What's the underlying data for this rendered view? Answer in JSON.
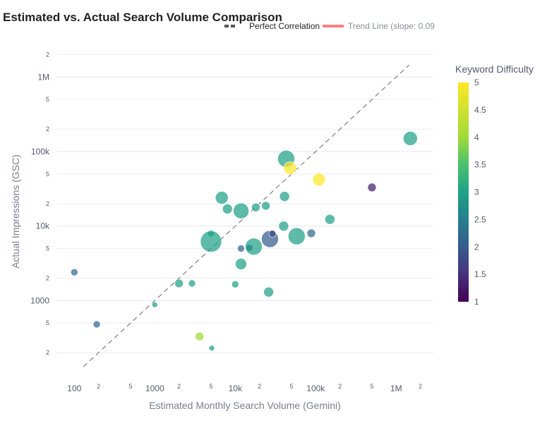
{
  "chart_data": {
    "type": "scatter",
    "title": "Estimated vs. Actual Search Volume Comparison",
    "xlabel": "Estimated Monthly Search Volume (Gemini)",
    "ylabel": "Actual Impressions (GSC)",
    "x_scale": "log",
    "y_scale": "log",
    "xlim": [
      60,
      2900000
    ],
    "ylim": [
      130,
      2800000
    ],
    "x_major_ticks": [
      {
        "v": 100,
        "label": "100"
      },
      {
        "v": 1000,
        "label": "1000"
      },
      {
        "v": 10000,
        "label": "10k"
      },
      {
        "v": 100000,
        "label": "100k"
      },
      {
        "v": 1000000,
        "label": "1M"
      }
    ],
    "y_major_ticks": [
      {
        "v": 1000,
        "label": "1000"
      },
      {
        "v": 10000,
        "label": "10k"
      },
      {
        "v": 100000,
        "label": "100k"
      },
      {
        "v": 1000000,
        "label": "1M"
      }
    ],
    "minor_ticks": [
      {
        "m": 2,
        "label": "2"
      },
      {
        "m": 5,
        "label": "5"
      }
    ],
    "legend": [
      {
        "name": "Perfect Correlation",
        "color": "#555555",
        "style": "dashed"
      },
      {
        "name": "Trend Line (slope: 0.09",
        "color": "#ff7f7f",
        "style": "solid"
      }
    ],
    "colorbar": {
      "title": "Keyword Difficulty",
      "min": 1,
      "max": 5,
      "ticks": [
        "1",
        "1.5",
        "2",
        "2.5",
        "3",
        "3.5",
        "4",
        "4.5",
        "5"
      ],
      "colorscale": "viridis"
    },
    "perfect_line": {
      "x": [
        130,
        1450000
      ],
      "y": [
        130,
        1450000
      ]
    },
    "points": [
      {
        "x": 100,
        "y": 2400,
        "kd": 2.2,
        "size": 5
      },
      {
        "x": 190,
        "y": 480,
        "kd": 2.1,
        "size": 5
      },
      {
        "x": 1000,
        "y": 880,
        "kd": 3.0,
        "size": 4
      },
      {
        "x": 2000,
        "y": 1700,
        "kd": 3.0,
        "size": 6
      },
      {
        "x": 2900,
        "y": 1700,
        "kd": 3.0,
        "size": 5
      },
      {
        "x": 3600,
        "y": 330,
        "kd": 4.0,
        "size": 6
      },
      {
        "x": 5100,
        "y": 230,
        "kd": 3.0,
        "size": 4
      },
      {
        "x": 5000,
        "y": 8000,
        "kd": 3.0,
        "size": 5
      },
      {
        "x": 5000,
        "y": 6200,
        "kd": 3.0,
        "size": 15
      },
      {
        "x": 6800,
        "y": 24000,
        "kd": 3.0,
        "size": 9
      },
      {
        "x": 8000,
        "y": 17000,
        "kd": 3.0,
        "size": 7
      },
      {
        "x": 10000,
        "y": 1650,
        "kd": 3.0,
        "size": 5
      },
      {
        "x": 11800,
        "y": 5000,
        "kd": 2.1,
        "size": 5
      },
      {
        "x": 11800,
        "y": 3100,
        "kd": 3.0,
        "size": 8
      },
      {
        "x": 11800,
        "y": 16000,
        "kd": 3.0,
        "size": 11
      },
      {
        "x": 15000,
        "y": 5100,
        "kd": 1.8,
        "size": 5
      },
      {
        "x": 17000,
        "y": 5300,
        "kd": 3.0,
        "size": 12
      },
      {
        "x": 18000,
        "y": 17800,
        "kd": 3.0,
        "size": 6
      },
      {
        "x": 24000,
        "y": 18700,
        "kd": 3.0,
        "size": 6
      },
      {
        "x": 26000,
        "y": 1300,
        "kd": 3.0,
        "size": 7
      },
      {
        "x": 27000,
        "y": 6700,
        "kd": 2.0,
        "size": 12
      },
      {
        "x": 29000,
        "y": 7900,
        "kd": 1.8,
        "size": 5
      },
      {
        "x": 40000,
        "y": 10000,
        "kd": 3.0,
        "size": 7
      },
      {
        "x": 41000,
        "y": 25000,
        "kd": 3.0,
        "size": 7
      },
      {
        "x": 43000,
        "y": 80000,
        "kd": 3.0,
        "size": 12
      },
      {
        "x": 48000,
        "y": 60000,
        "kd": 5.0,
        "size": 9
      },
      {
        "x": 58000,
        "y": 7300,
        "kd": 3.0,
        "size": 12
      },
      {
        "x": 88000,
        "y": 8000,
        "kd": 2.2,
        "size": 6
      },
      {
        "x": 110000,
        "y": 42000,
        "kd": 5.0,
        "size": 9
      },
      {
        "x": 150000,
        "y": 12300,
        "kd": 3.0,
        "size": 7
      },
      {
        "x": 500000,
        "y": 33000,
        "kd": 1.3,
        "size": 6
      },
      {
        "x": 1500000,
        "y": 150000,
        "kd": 3.0,
        "size": 10
      }
    ]
  }
}
